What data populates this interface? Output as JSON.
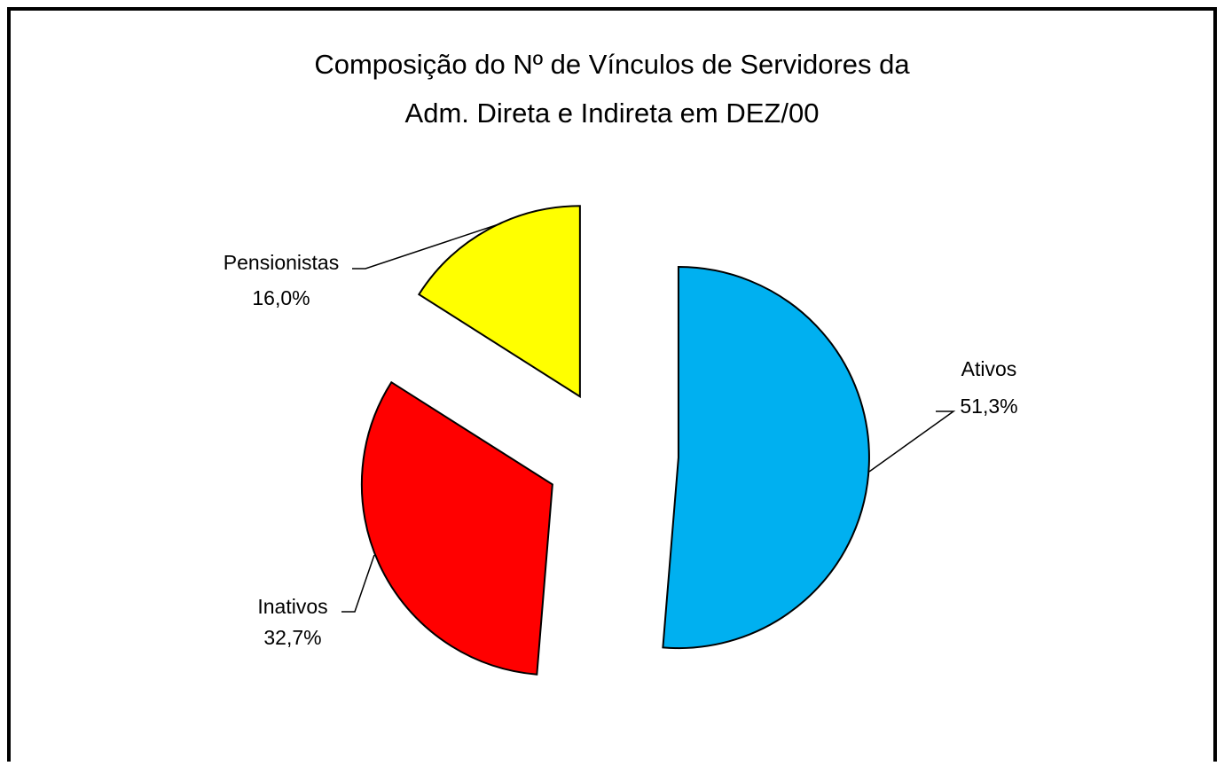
{
  "chart_data": {
    "type": "pie",
    "title": [
      "Composição do Nº de Vínculos de Servidores da",
      "Adm. Direta e Indireta em DEZ/00"
    ],
    "categories": [
      "Ativos",
      "Inativos",
      "Pensionistas"
    ],
    "values": [
      51.3,
      32.7,
      16.0
    ],
    "value_labels": [
      "51,3%",
      "32,7%",
      "16,0%"
    ],
    "colors": [
      "#00b0f0",
      "#ff0000",
      "#ffff00"
    ]
  }
}
